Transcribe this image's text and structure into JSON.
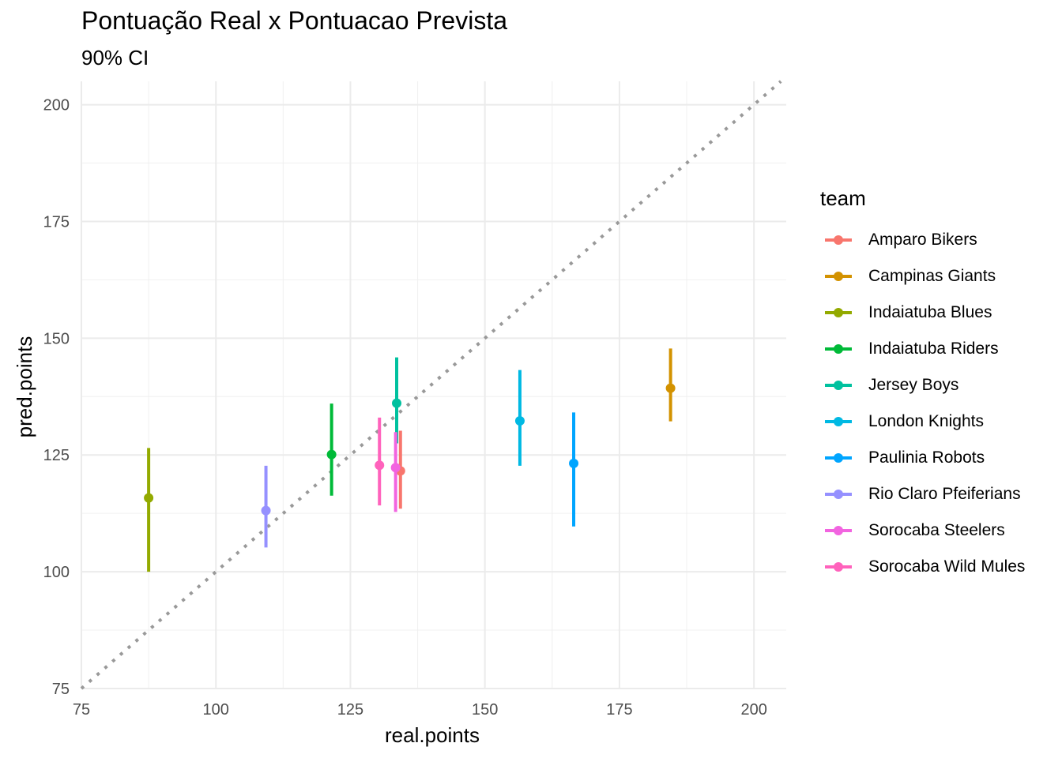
{
  "title": "Pontuação Real x Pontuacao Prevista",
  "subtitle": "90% CI",
  "chart_data": {
    "type": "pointrange",
    "title": "Pontuação Real x Pontuacao Prevista",
    "subtitle": "90% CI",
    "xlabel": "real.points",
    "ylabel": "pred.points",
    "xlim": [
      75,
      206
    ],
    "ylim": [
      75,
      205
    ],
    "x_ticks": [
      75,
      100,
      125,
      150,
      175,
      200
    ],
    "y_ticks": [
      75,
      100,
      125,
      150,
      175,
      200
    ],
    "grid": true,
    "reference_line": {
      "type": "identity",
      "style": "dotted",
      "color": "#999999"
    },
    "legend_title": "team",
    "legend_position": "right",
    "series": [
      {
        "name": "Amparo Bikers",
        "color": "#F8766D",
        "x": 134.3,
        "y": 121.6,
        "lower": 113.5,
        "upper": 130.2
      },
      {
        "name": "Campinas Giants",
        "color": "#D39200",
        "x": 184.5,
        "y": 139.3,
        "lower": 132.2,
        "upper": 147.8
      },
      {
        "name": "Indaiatuba Blues",
        "color": "#93AA00",
        "x": 87.5,
        "y": 115.8,
        "lower": 100.0,
        "upper": 126.5
      },
      {
        "name": "Indaiatuba Riders",
        "color": "#00BA38",
        "x": 121.5,
        "y": 125.1,
        "lower": 116.3,
        "upper": 136.0
      },
      {
        "name": "Jersey Boys",
        "color": "#00C19F",
        "x": 133.6,
        "y": 136.1,
        "lower": 127.5,
        "upper": 145.9
      },
      {
        "name": "London Knights",
        "color": "#00B9E3",
        "x": 156.5,
        "y": 132.3,
        "lower": 122.7,
        "upper": 143.2
      },
      {
        "name": "Paulinia Robots",
        "color": "#00A5FF",
        "x": 166.5,
        "y": 123.2,
        "lower": 109.7,
        "upper": 134.1
      },
      {
        "name": "Rio Claro Pfeiferians",
        "color": "#9590FF",
        "x": 109.3,
        "y": 113.1,
        "lower": 105.2,
        "upper": 122.7
      },
      {
        "name": "Sorocaba Steelers",
        "color": "#F264E0",
        "x": 133.4,
        "y": 122.3,
        "lower": 112.8,
        "upper": 129.9
      },
      {
        "name": "Sorocaba Wild Mules",
        "color": "#FF62BC",
        "x": 130.4,
        "y": 122.8,
        "lower": 114.2,
        "upper": 133.0
      }
    ]
  }
}
